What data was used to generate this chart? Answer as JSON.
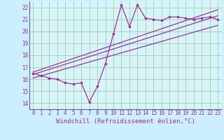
{
  "bg_color": "#cceeff",
  "plot_bg_color": "#d8f5f5",
  "grid_color": "#aacccc",
  "line_color": "#993399",
  "marker": "D",
  "marker_size": 2.0,
  "xlabel": "Windchill (Refroidissement éolien,°C)",
  "xlabel_fontsize": 6.5,
  "tick_fontsize": 5.5,
  "ylim": [
    13.5,
    22.5
  ],
  "xlim": [
    -0.5,
    23.5
  ],
  "yticks": [
    14,
    15,
    16,
    17,
    18,
    19,
    20,
    21,
    22
  ],
  "xticks": [
    0,
    1,
    2,
    3,
    4,
    5,
    6,
    7,
    8,
    9,
    10,
    11,
    12,
    13,
    14,
    15,
    16,
    17,
    18,
    19,
    20,
    21,
    22,
    23
  ],
  "data_x": [
    0,
    1,
    2,
    3,
    4,
    5,
    6,
    7,
    8,
    9,
    10,
    11,
    12,
    13,
    14,
    15,
    16,
    17,
    18,
    19,
    20,
    21,
    22,
    23
  ],
  "data_y": [
    16.5,
    16.3,
    16.1,
    16.0,
    15.7,
    15.6,
    15.7,
    14.1,
    15.4,
    17.3,
    19.8,
    22.2,
    20.4,
    22.2,
    21.1,
    21.0,
    20.9,
    21.2,
    21.2,
    21.1,
    21.0,
    21.1,
    21.2,
    21.0
  ],
  "trend_lines": [
    {
      "x": [
        0,
        23
      ],
      "y": [
        16.4,
        21.3
      ]
    },
    {
      "x": [
        0,
        23
      ],
      "y": [
        16.1,
        20.5
      ]
    },
    {
      "x": [
        0,
        23
      ],
      "y": [
        16.6,
        21.8
      ]
    }
  ]
}
